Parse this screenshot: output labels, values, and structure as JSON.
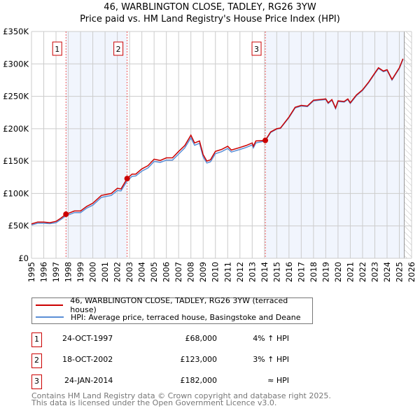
{
  "chart_data": {
    "type": "line",
    "title": "46, WARBLINGTON CLOSE, TADLEY, RG26 3YW",
    "subtitle": "Price paid vs. HM Land Registry's House Price Index (HPI)",
    "xlim": [
      1995,
      2026
    ],
    "ylim": [
      0,
      350000
    ],
    "x_ticks": [
      "1995",
      "1996",
      "1997",
      "1998",
      "1999",
      "2000",
      "2001",
      "2002",
      "2003",
      "2004",
      "2005",
      "2006",
      "2007",
      "2008",
      "2009",
      "2010",
      "2011",
      "2012",
      "2013",
      "2014",
      "2015",
      "2016",
      "2017",
      "2018",
      "2019",
      "2020",
      "2021",
      "2022",
      "2023",
      "2024",
      "2025",
      "2026"
    ],
    "y_ticks": [
      {
        "v": 0,
        "label": "£0"
      },
      {
        "v": 50000,
        "label": "£50K"
      },
      {
        "v": 100000,
        "label": "£100K"
      },
      {
        "v": 150000,
        "label": "£150K"
      },
      {
        "v": 200000,
        "label": "£200K"
      },
      {
        "v": 250000,
        "label": "£250K"
      },
      {
        "v": 300000,
        "label": "£300K"
      },
      {
        "v": 350000,
        "label": "£350K"
      }
    ],
    "grid": true,
    "x": [
      1995,
      1995.5,
      1996,
      1996.5,
      1997,
      1997.4,
      1997.8,
      1998.5,
      1999,
      1999.5,
      2000,
      2000.7,
      2001.5,
      2002,
      2002.3,
      2002.8,
      2003.2,
      2003.5,
      2004,
      2004.5,
      2005,
      2005.5,
      2006,
      2006.5,
      2007,
      2007.5,
      2008,
      2008.3,
      2008.7,
      2009,
      2009.3,
      2009.6,
      2010,
      2010.5,
      2011,
      2011.3,
      2012,
      2012.5,
      2013,
      2013.1,
      2013.3,
      2014.07,
      2014.5,
      2015,
      2015.3,
      2016,
      2016.5,
      2017,
      2017.5,
      2018,
      2018.5,
      2019,
      2019.2,
      2019.5,
      2019.8,
      2020,
      2020.5,
      2020.8,
      2021,
      2021.5,
      2022,
      2022.5,
      2023,
      2023.3,
      2023.7,
      2024,
      2024.4,
      2024.8,
      2025,
      2025.3
    ],
    "series": [
      {
        "name": "46, WARBLINGTON CLOSE, TADLEY, RG26 3YW (terraced house)",
        "color": "#cc0000",
        "values": [
          53000,
          56000,
          56000,
          55000,
          57000,
          62000,
          68000,
          73000,
          73000,
          80000,
          85000,
          97000,
          100000,
          108000,
          107000,
          123000,
          130000,
          130000,
          138000,
          143000,
          153000,
          151000,
          155000,
          155000,
          165000,
          174000,
          190000,
          178000,
          181000,
          160000,
          150000,
          152000,
          165000,
          168000,
          173000,
          167000,
          171000,
          174000,
          178000,
          173000,
          181000,
          182000,
          195000,
          200000,
          201000,
          218000,
          233000,
          236000,
          235000,
          244000,
          245000,
          246000,
          240000,
          245000,
          232000,
          243000,
          242000,
          246000,
          240000,
          252000,
          260000,
          272000,
          286000,
          294000,
          289000,
          291000,
          276000,
          288000,
          294000,
          308000
        ]
      },
      {
        "name": "HPI: Average price, terraced house, Basingstoke and Deane",
        "color": "#5b8fd6",
        "values": [
          51500,
          54000,
          54000,
          53500,
          55000,
          60000,
          65500,
          70500,
          70500,
          77500,
          82000,
          94000,
          97000,
          104500,
          104000,
          119500,
          126500,
          127000,
          134500,
          139500,
          149500,
          148000,
          151500,
          151500,
          161000,
          170500,
          186000,
          174500,
          177500,
          156500,
          147000,
          149000,
          161500,
          164500,
          169500,
          164000,
          168000,
          171000,
          175000,
          170500,
          178000,
          181000,
          194000,
          199500,
          200500,
          217000,
          232000,
          235000,
          234000,
          243000,
          244000,
          245000,
          239000,
          244000,
          231000,
          242000,
          241000,
          245000,
          239000,
          251000,
          259000,
          271000,
          285000,
          293000,
          288000,
          290000,
          275000,
          287000,
          293000,
          307000
        ]
      }
    ],
    "shaded_ranges": [
      [
        1997.81,
        2002.8
      ],
      [
        2014.07,
        2025.4
      ]
    ],
    "forecast_from": 2025.4,
    "sales": [
      {
        "label": "1",
        "x": 1997.81,
        "y": 68000,
        "date": "24-OCT-1997",
        "price": "£68,000",
        "hpi": "4% ↑ HPI"
      },
      {
        "label": "2",
        "x": 2002.8,
        "y": 123000,
        "date": "18-OCT-2002",
        "price": "£123,000",
        "hpi": "3% ↑ HPI"
      },
      {
        "label": "3",
        "x": 2014.07,
        "y": 182000,
        "date": "24-JAN-2014",
        "price": "£182,000",
        "hpi": "≈ HPI"
      }
    ]
  },
  "footer": {
    "line1": "Contains HM Land Registry data © Crown copyright and database right 2025.",
    "line2": "This data is licensed under the Open Government Licence v3.0."
  }
}
